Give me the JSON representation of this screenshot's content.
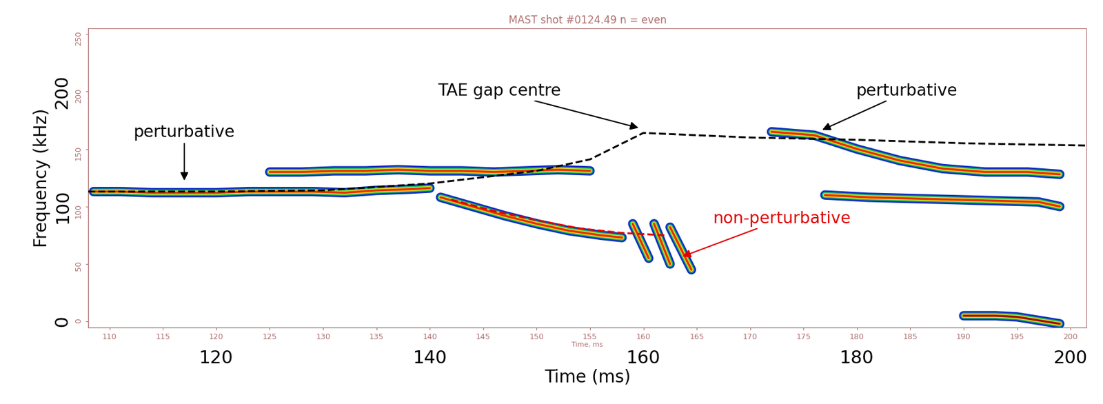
{
  "chart_data": {
    "type": "line",
    "title": "MAST shot #0124.49 n = even",
    "x_label": "Time (ms)",
    "y_label": "Frequency (kHz)",
    "secondary_x_label": "Time, ms",
    "xlim": [
      108,
      201.5
    ],
    "ylim": [
      -5,
      255
    ],
    "xticks": [
      120,
      140,
      160,
      180,
      200
    ],
    "yticks": [
      0,
      100,
      200
    ],
    "secondary_xticks": [
      110,
      115,
      120,
      125,
      130,
      135,
      140,
      145,
      150,
      155,
      160,
      165,
      170,
      175,
      180,
      185,
      190,
      195,
      200
    ],
    "secondary_yticks": [
      0,
      50,
      100,
      150,
      200,
      250
    ],
    "grid": false,
    "series": [
      {
        "type": "mode",
        "color": "#e83000",
        "x": [
          108.5,
          111,
          114,
          117,
          120,
          123,
          126,
          129,
          132,
          135,
          138,
          140
        ],
        "values": [
          113,
          113,
          112,
          112,
          112,
          113,
          113,
          113,
          112,
          114,
          115,
          116
        ]
      },
      {
        "type": "mode",
        "color": "#e83000",
        "x": [
          125,
          128,
          131,
          134,
          137,
          140,
          143,
          146,
          149,
          152,
          155
        ],
        "values": [
          130,
          130,
          131,
          131,
          132,
          131,
          131,
          130,
          131,
          132,
          131
        ]
      },
      {
        "type": "mode",
        "color": "#e83000",
        "x": [
          141,
          144,
          147,
          150,
          153,
          156,
          158
        ],
        "values": [
          108,
          100,
          92,
          85,
          79,
          75,
          73
        ]
      },
      {
        "type": "mode",
        "color": "#e83000",
        "x": [
          159,
          160.5
        ],
        "values": [
          85,
          55
        ]
      },
      {
        "type": "mode",
        "color": "#e83000",
        "x": [
          161,
          162.5
        ],
        "values": [
          85,
          50
        ]
      },
      {
        "type": "mode",
        "color": "#e83000",
        "x": [
          162.5,
          164.5
        ],
        "values": [
          82,
          45
        ]
      },
      {
        "type": "mode",
        "color": "#e83000",
        "x": [
          172,
          176,
          180,
          184,
          188,
          192,
          196,
          199
        ],
        "values": [
          165,
          162,
          150,
          140,
          133,
          130,
          130,
          128
        ]
      },
      {
        "type": "mode",
        "color": "#e83000",
        "x": [
          177,
          181,
          185,
          189,
          193,
          197,
          199
        ],
        "values": [
          110,
          108,
          107,
          106,
          105,
          104,
          100
        ]
      },
      {
        "type": "mode",
        "color": "#a01000",
        "x": [
          190,
          193,
          195,
          197,
          199
        ],
        "values": [
          5,
          5,
          4,
          1,
          -2
        ]
      },
      {
        "type": "line",
        "color": "#000000",
        "line_style": "dashed",
        "x": [
          108,
          120,
          130,
          140,
          150,
          155,
          160,
          170,
          180,
          190,
          201.5
        ],
        "values": [
          113,
          113,
          114,
          120,
          131,
          141,
          164,
          160,
          158,
          155,
          153
        ]
      },
      {
        "type": "line",
        "color": "#e00000",
        "line_style": "dashed",
        "x": [
          142,
          146,
          150,
          154,
          158,
          162
        ],
        "values": [
          106,
          96,
          88,
          81,
          77,
          75
        ]
      }
    ],
    "annotations": [
      {
        "text": "perturbative",
        "x": 117,
        "y": 164,
        "arrow_x": 117,
        "arrow_y": 121,
        "color": "#000000"
      },
      {
        "text": "TAE gap centre",
        "x": 146.5,
        "y": 200,
        "arrow_x": 159.7,
        "arrow_y": 168,
        "color": "#000000"
      },
      {
        "text": "perturbative",
        "x": 184.7,
        "y": 200,
        "arrow_x": 176.6,
        "arrow_y": 166,
        "color": "#000000"
      },
      {
        "text": "non-perturbative",
        "x": 173,
        "y": 89,
        "arrow_x": 163.5,
        "arrow_y": 56,
        "color": "#e00000"
      }
    ]
  }
}
